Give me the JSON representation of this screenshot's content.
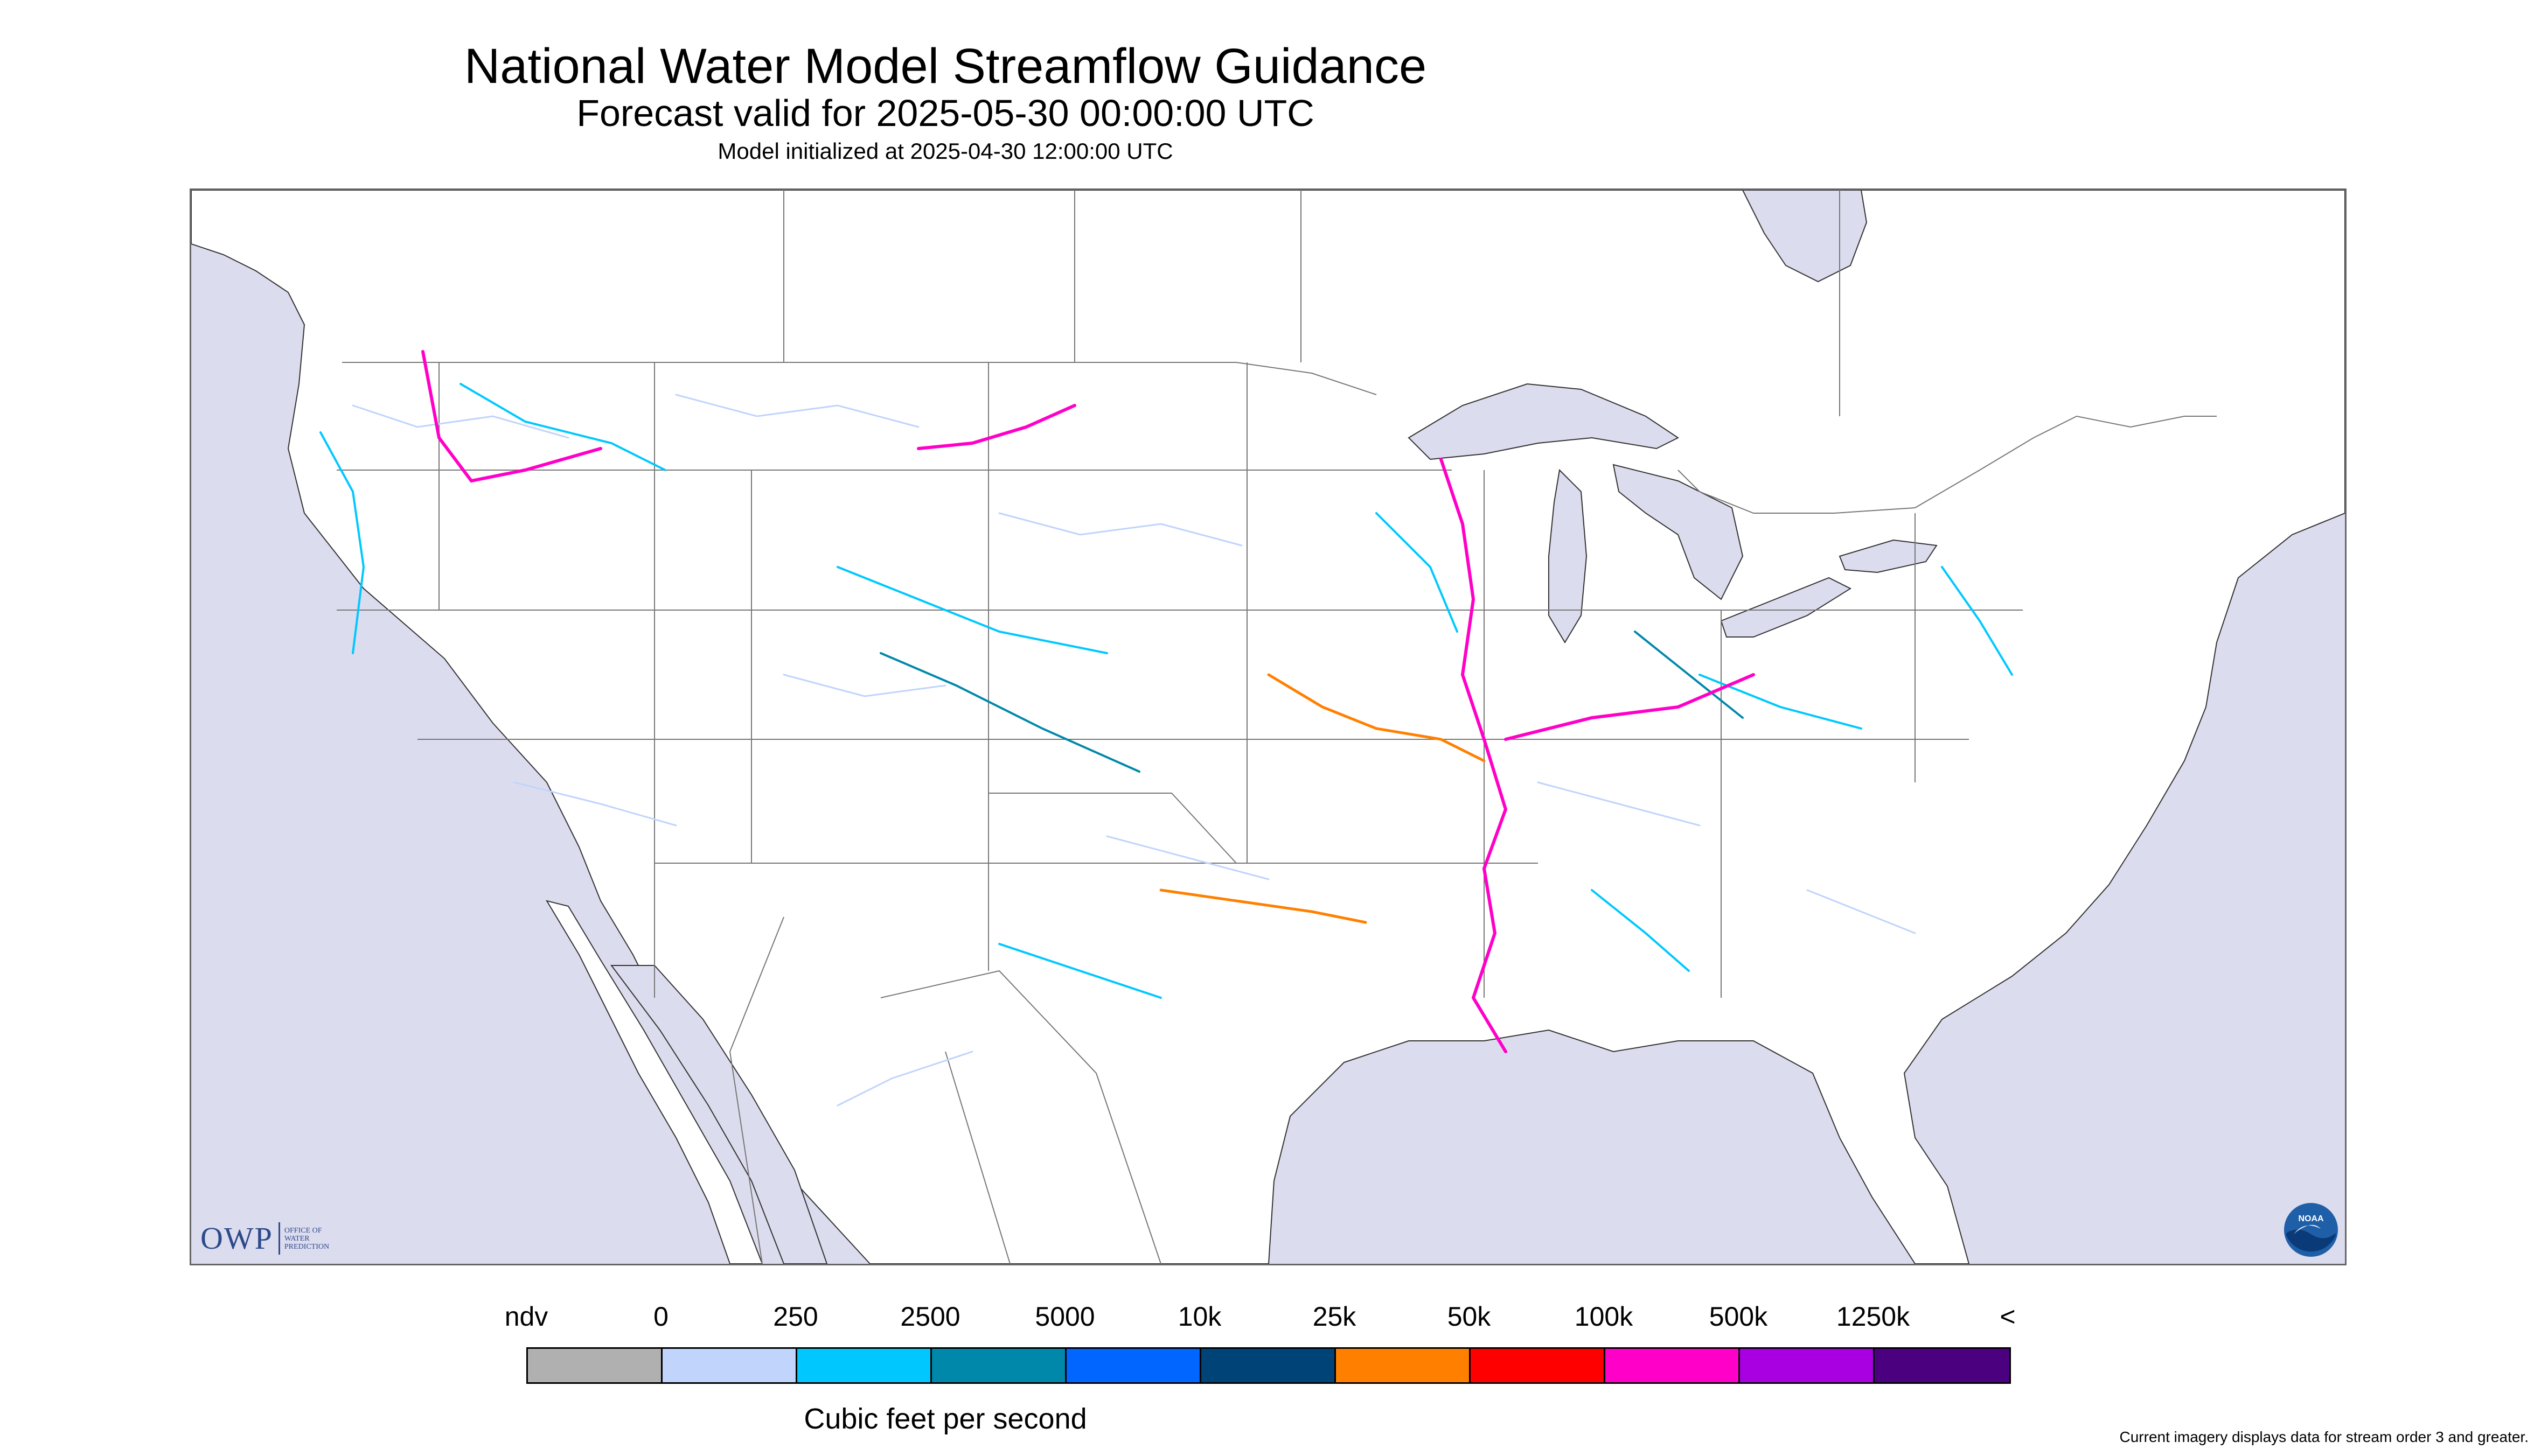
{
  "header": {
    "title": "National Water Model Streamflow Guidance",
    "forecast_valid": "Forecast valid for 2025-05-30 00:00:00 UTC",
    "model_initialized": "Model initialized at 2025-04-30 12:00:00 UTC"
  },
  "legend": {
    "ticks": [
      "ndv",
      "0",
      "250",
      "2500",
      "5000",
      "10k",
      "25k",
      "50k",
      "100k",
      "500k",
      "1250k",
      "<"
    ],
    "colors": [
      "#b0b0b0",
      "#c0d4fc",
      "#00c8ff",
      "#0088aa",
      "#0066ff",
      "#004477",
      "#ff8000",
      "#ff0000",
      "#ff00c8",
      "#a800e0",
      "#4b0080"
    ],
    "units": "Cubic feet per second"
  },
  "footnote": "Current imagery displays data for stream order 3 and greater.",
  "logos": {
    "owp_mark": "OWP",
    "owp_lines": [
      "OFFICE OF",
      "WATER",
      "PREDICTION"
    ],
    "noaa": "NOAA"
  },
  "map": {
    "water_color": "#dcdcef",
    "land_color": "#ffffff",
    "border_color": "#666666"
  }
}
